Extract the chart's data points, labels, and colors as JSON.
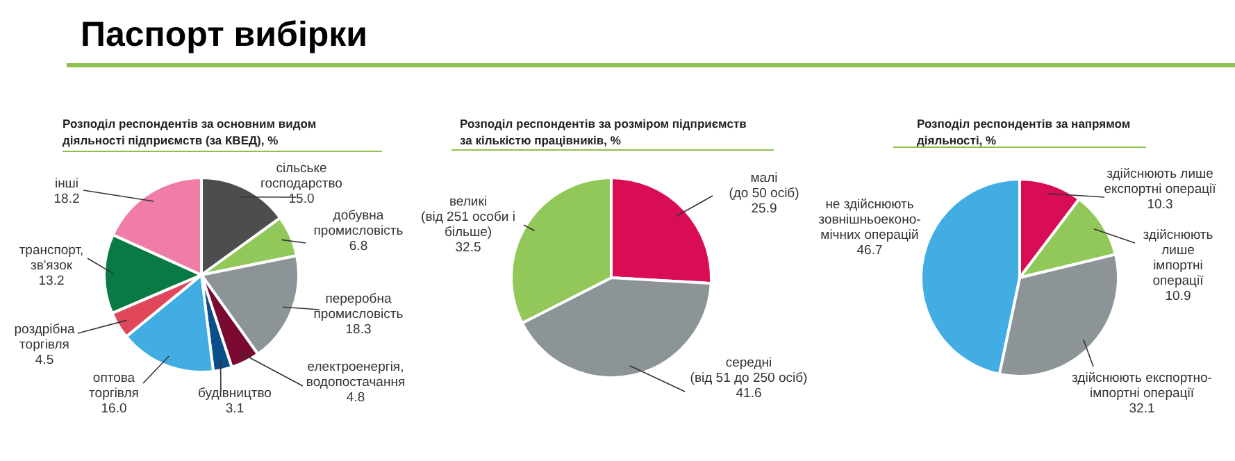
{
  "chart_data": [
    {
      "type": "pie",
      "title": "Паспорт вибірки",
      "subtitle": "Розподіл респондентів за основним видом\nдіяльності підприємств  (за КВЕД), %",
      "data_labels": true,
      "categories": [
        "сільське\nгосподарство",
        "добувна\nпромисловість",
        "переробна\nпромисловість",
        "електроенергія,\nводопостачання",
        "будівництво",
        "оптова\nторгівля",
        "роздрібна\nторгівля",
        "транспорт,\nзв'язок",
        "інші"
      ],
      "values": [
        15.0,
        6.8,
        18.3,
        4.8,
        3.1,
        16.0,
        4.5,
        13.2,
        18.2
      ],
      "value_labels": [
        "15.0",
        "6.8",
        "18.3",
        "4.8",
        "3.1",
        "16.0",
        "4.5",
        "13.2",
        "18.2"
      ],
      "colors": [
        "#4d4d4d",
        "#92c85a",
        "#8c9497",
        "#7a0a32",
        "#0b4f8a",
        "#41ade3",
        "#e0475a",
        "#0a7a45",
        "#f07ca8"
      ]
    },
    {
      "type": "pie",
      "subtitle": "Розподіл респондентів за розміром підприємств\nза кількістю працівників, %",
      "data_labels": true,
      "categories": [
        "малі\n(до 50 осіб)",
        "середні\n(від 51 до 250 осіб)",
        "великі\n(від 251 особи і\nбільше)"
      ],
      "values": [
        25.9,
        41.6,
        32.5
      ],
      "value_labels": [
        "25.9",
        "41.6",
        "32.5"
      ],
      "colors": [
        "#d90d55",
        "#8c9497",
        "#92c85a"
      ]
    },
    {
      "type": "pie",
      "subtitle": "Розподіл респондентів за напрямом\nдіяльності, %",
      "data_labels": true,
      "categories": [
        "здійснюють лише\nекспортні операції",
        "здійснюють\nлише\nімпортні\nоперації",
        "здійснюють експортно-\nімпортні операції",
        "не здійснюють\nзовнішньоеконо-\nмічних операцій"
      ],
      "values": [
        10.3,
        10.9,
        32.1,
        46.7
      ],
      "value_labels": [
        "10.3",
        "10.9",
        "32.1",
        "46.7"
      ],
      "colors": [
        "#d90d55",
        "#92c85a",
        "#8c9497",
        "#41ade3"
      ]
    }
  ]
}
